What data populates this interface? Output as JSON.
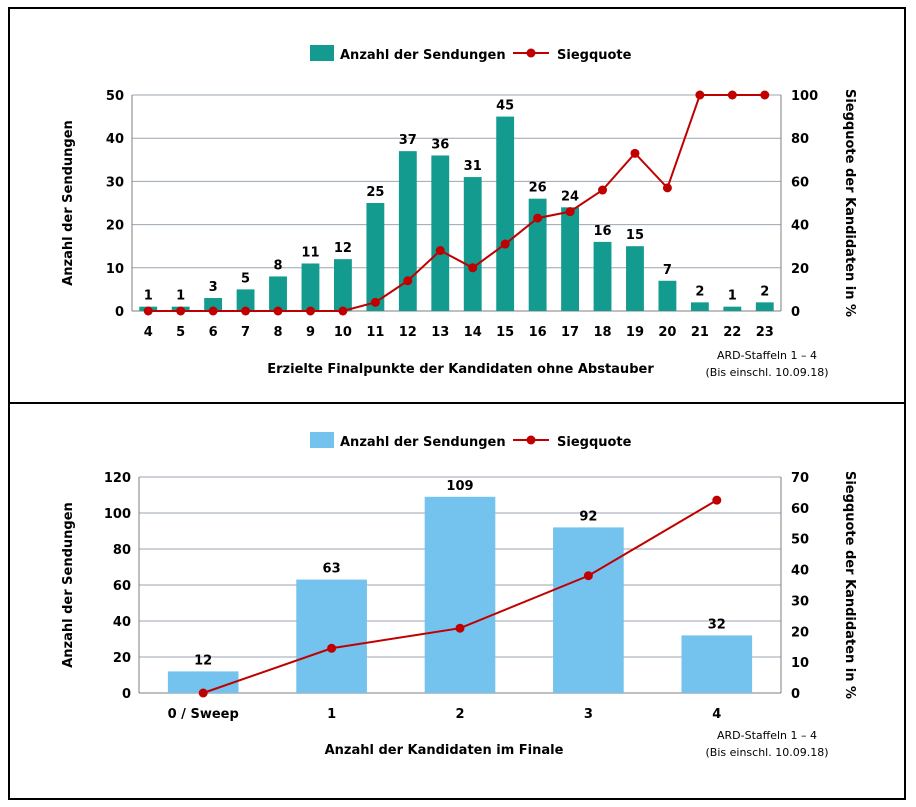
{
  "chart_data": [
    {
      "type": "bar",
      "legend": {
        "placement": "top-center",
        "bars": "Anzahl der Sendungen",
        "line": "Siegquote"
      },
      "colors": {
        "bar": "#129b8e",
        "line": "#c00000"
      },
      "categories": [
        "4",
        "5",
        "6",
        "7",
        "8",
        "9",
        "10",
        "11",
        "12",
        "13",
        "14",
        "15",
        "16",
        "17",
        "18",
        "19",
        "20",
        "21",
        "22",
        "23"
      ],
      "series": [
        {
          "name": "Anzahl der Sendungen",
          "type": "bar",
          "axis": "left",
          "values": [
            1,
            1,
            3,
            5,
            8,
            11,
            12,
            25,
            37,
            36,
            31,
            45,
            26,
            24,
            16,
            15,
            7,
            2,
            1,
            2
          ]
        },
        {
          "name": "Siegquote",
          "type": "line",
          "axis": "right",
          "values": [
            0,
            0,
            0,
            0,
            0,
            0,
            0,
            4,
            14,
            28,
            20,
            31,
            43,
            46,
            56,
            73,
            57,
            100,
            100,
            100
          ]
        }
      ],
      "xlabel": "Erzielte Finalpunkte der Kandidaten ohne Abstauber",
      "ylabel": "Anzahl der Sendungen",
      "y2label": "Siegquote der Kandidaten in %",
      "ylim": [
        0,
        50
      ],
      "yticks": [
        0,
        10,
        20,
        30,
        40,
        50
      ],
      "y2lim": [
        0,
        100
      ],
      "y2ticks": [
        0,
        20,
        40,
        60,
        80,
        100
      ],
      "grid": true,
      "note": [
        "ARD-Staffeln 1 – 4",
        "(Bis einschl. 10.09.18)"
      ]
    },
    {
      "type": "bar",
      "legend": {
        "placement": "top-center",
        "bars": "Anzahl der Sendungen",
        "line": "Siegquote"
      },
      "colors": {
        "bar": "#74c2ee",
        "line": "#c00000"
      },
      "categories": [
        "0 / Sweep",
        "1",
        "2",
        "3",
        "4"
      ],
      "series": [
        {
          "name": "Anzahl der Sendungen",
          "type": "bar",
          "axis": "left",
          "values": [
            12,
            63,
            109,
            92,
            32
          ]
        },
        {
          "name": "Siegquote",
          "type": "line",
          "axis": "right",
          "values": [
            0,
            14.5,
            21,
            38,
            62.5
          ]
        }
      ],
      "xlabel": "Anzahl der Kandidaten im Finale",
      "ylabel": "Anzahl der Sendungen",
      "y2label": "Siegquote der Kandidaten in %",
      "ylim": [
        0,
        120
      ],
      "yticks": [
        0,
        20,
        40,
        60,
        80,
        100,
        120
      ],
      "y2lim": [
        0,
        70
      ],
      "y2ticks": [
        0,
        10,
        20,
        30,
        40,
        50,
        60,
        70
      ],
      "grid": true,
      "note": [
        "ARD-Staffeln 1 – 4",
        "(Bis einschl. 10.09.18)"
      ]
    }
  ]
}
